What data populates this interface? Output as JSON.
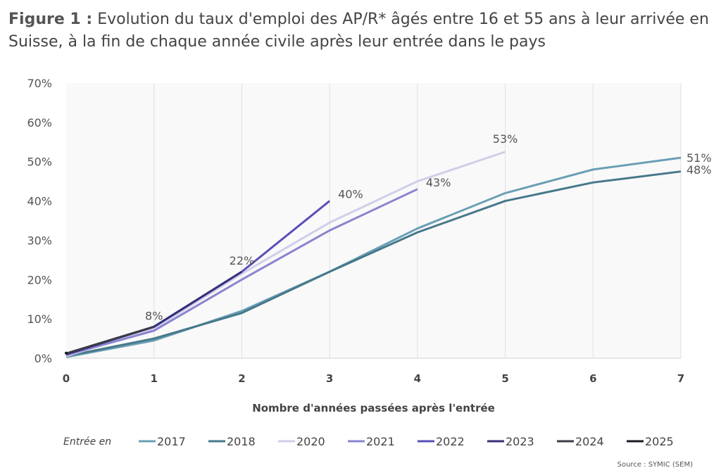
{
  "title": {
    "prefix": "Figure 1 :",
    "text": "Evolution du taux d'emploi des AP/R* âgés entre 16 et 55 ans à leur arrivée en Suisse, à la fin de chaque année civile après leur entrée dans le pays"
  },
  "source": "Source : SYMIC (SEM)",
  "chart_data": {
    "type": "line",
    "xlabel": "Nombre d'années passées après l'entrée",
    "ylabel": "",
    "xlim": [
      0,
      7
    ],
    "ylim": [
      0,
      70
    ],
    "x_ticks": [
      "0",
      "1",
      "2",
      "3",
      "4",
      "5",
      "6",
      "7"
    ],
    "y_ticks": [
      "0%",
      "10%",
      "20%",
      "30%",
      "40%",
      "50%",
      "60%",
      "70%"
    ],
    "grid": "vertical",
    "legend_title": "Entrée en",
    "legend_position": "bottom",
    "series": [
      {
        "name": "2017",
        "color": "#6a9fb5",
        "values": [
          0.3,
          4.5,
          12,
          22,
          33,
          42,
          48,
          51
        ]
      },
      {
        "name": "2018",
        "color": "#47788a",
        "values": [
          0.5,
          5,
          11.5,
          22,
          32,
          40,
          44.7,
          47.5
        ]
      },
      {
        "name": "2020",
        "color": "#cfcfea",
        "values": [
          0.5,
          7.5,
          21.5,
          34.5,
          45,
          52.5
        ]
      },
      {
        "name": "2021",
        "color": "#8a84d0",
        "values": [
          0.8,
          7,
          20,
          32.5,
          43
        ]
      },
      {
        "name": "2022",
        "color": "#5a4fb8",
        "values": [
          1,
          8,
          22,
          40
        ]
      },
      {
        "name": "2023",
        "color": "#34307a",
        "values": [
          1,
          8,
          22
        ]
      },
      {
        "name": "2024",
        "color": "#3a3a48",
        "values": [
          1.2,
          8
        ]
      },
      {
        "name": "2025",
        "color": "#1a1a22",
        "values": [
          1.3
        ]
      }
    ],
    "annotations": [
      {
        "text": "8%",
        "x": 1,
        "y": 8
      },
      {
        "text": "22%",
        "x": 2,
        "y": 22
      },
      {
        "text": "40%",
        "x": 3,
        "y": 40
      },
      {
        "text": "43%",
        "x": 4,
        "y": 43
      },
      {
        "text": "53%",
        "x": 5,
        "y": 53
      },
      {
        "text": "51%",
        "x": 7,
        "y": 51
      },
      {
        "text": "48%",
        "x": 7,
        "y": 48
      }
    ]
  }
}
